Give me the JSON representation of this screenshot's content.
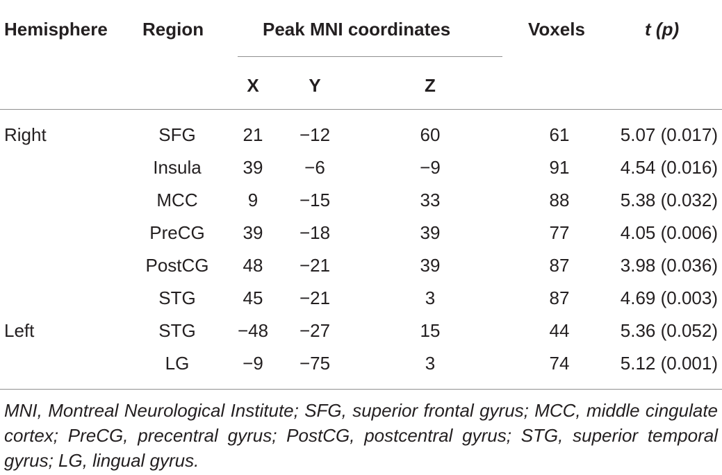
{
  "headers": {
    "hemisphere": "Hemisphere",
    "region": "Region",
    "peak": "Peak MNI coordinates",
    "voxels": "Voxels",
    "t_label": "t",
    "p_label": "p",
    "x": "X",
    "y": "Y",
    "z": "Z"
  },
  "rows": [
    {
      "hemisphere": "Right",
      "region": "SFG",
      "x": "21",
      "y": "−12",
      "z": "60",
      "voxels": "61",
      "tp": "5.07 (0.017)"
    },
    {
      "hemisphere": "",
      "region": "Insula",
      "x": "39",
      "y": "−6",
      "z": "−9",
      "voxels": "91",
      "tp": "4.54 (0.016)"
    },
    {
      "hemisphere": "",
      "region": "MCC",
      "x": "9",
      "y": "−15",
      "z": "33",
      "voxels": "88",
      "tp": "5.38 (0.032)"
    },
    {
      "hemisphere": "",
      "region": "PreCG",
      "x": "39",
      "y": "−18",
      "z": "39",
      "voxels": "77",
      "tp": "4.05 (0.006)"
    },
    {
      "hemisphere": "",
      "region": "PostCG",
      "x": "48",
      "y": "−21",
      "z": "39",
      "voxels": "87",
      "tp": "3.98 (0.036)"
    },
    {
      "hemisphere": "",
      "region": "STG",
      "x": "45",
      "y": "−21",
      "z": "3",
      "voxels": "87",
      "tp": "4.69 (0.003)"
    },
    {
      "hemisphere": "Left",
      "region": "STG",
      "x": "−48",
      "y": "−27",
      "z": "15",
      "voxels": "44",
      "tp": "5.36 (0.052)"
    },
    {
      "hemisphere": "",
      "region": "LG",
      "x": "−9",
      "y": "−75",
      "z": "3",
      "voxels": "74",
      "tp": "5.12 (0.001)"
    }
  ],
  "footnote": "MNI, Montreal Neurological Institute; SFG, superior frontal gyrus; MCC, middle cingulate cortex; PreCG, precentral gyrus; PostCG, postcentral gyrus; STG, superior temporal gyrus; LG, lingual gyrus."
}
